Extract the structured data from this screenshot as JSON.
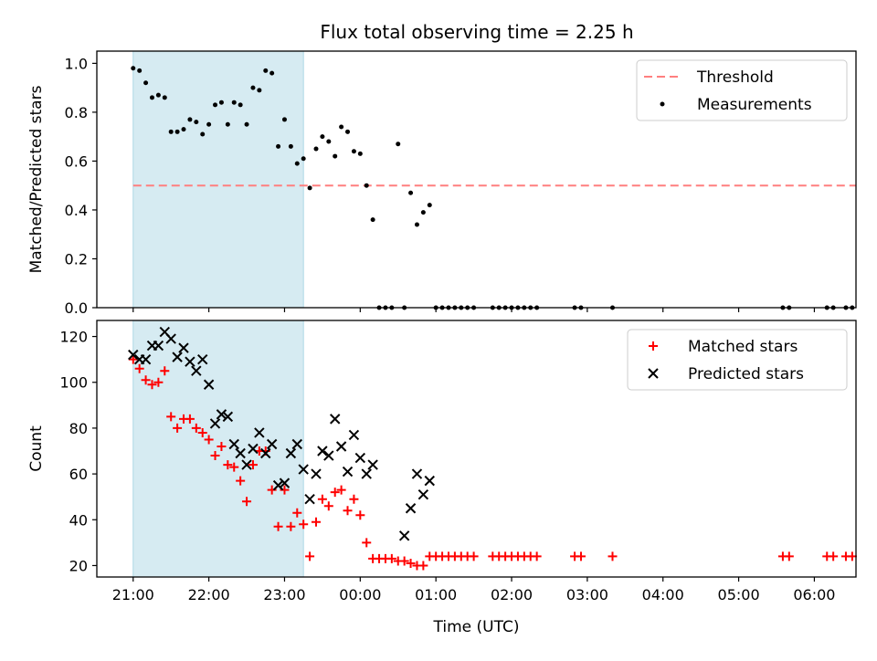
{
  "title": "Flux total observing time = 2.25 h",
  "shaded_color": "#add8e6",
  "chart_data": [
    {
      "type": "scatter",
      "ylabel": "Matched/Predicted stars",
      "ylim": [
        0,
        1.05
      ],
      "xlim_hours": [
        -0.48,
        9.55
      ],
      "yticks": [
        "0.0",
        "0.2",
        "0.4",
        "0.6",
        "0.8",
        "1.0"
      ],
      "ytick_values": [
        0,
        0.2,
        0.4,
        0.6,
        0.8,
        1.0
      ],
      "shaded_span": [
        "21:00",
        "23:15"
      ],
      "legend": {
        "placement": "top-right",
        "items": [
          "Threshold",
          "Measurements"
        ]
      },
      "threshold": {
        "name": "Threshold",
        "value": 0.5,
        "x_range": [
          "21:00",
          "06:33"
        ],
        "color": "#ff7f7f"
      },
      "series": [
        {
          "name": "Measurements",
          "color": "#000000",
          "points": [
            [
              "21:00",
              0.98
            ],
            [
              "21:05",
              0.97
            ],
            [
              "21:10",
              0.92
            ],
            [
              "21:15",
              0.86
            ],
            [
              "21:20",
              0.87
            ],
            [
              "21:25",
              0.86
            ],
            [
              "21:30",
              0.72
            ],
            [
              "21:35",
              0.72
            ],
            [
              "21:40",
              0.73
            ],
            [
              "21:45",
              0.77
            ],
            [
              "21:50",
              0.76
            ],
            [
              "21:55",
              0.71
            ],
            [
              "22:00",
              0.75
            ],
            [
              "22:05",
              0.83
            ],
            [
              "22:10",
              0.84
            ],
            [
              "22:15",
              0.75
            ],
            [
              "22:20",
              0.84
            ],
            [
              "22:25",
              0.83
            ],
            [
              "22:30",
              0.75
            ],
            [
              "22:35",
              0.9
            ],
            [
              "22:40",
              0.89
            ],
            [
              "22:45",
              0.97
            ],
            [
              "22:50",
              0.96
            ],
            [
              "22:55",
              0.66
            ],
            [
              "23:00",
              0.77
            ],
            [
              "23:05",
              0.66
            ],
            [
              "23:10",
              0.59
            ],
            [
              "23:15",
              0.61
            ],
            [
              "23:20",
              0.49
            ],
            [
              "23:25",
              0.65
            ],
            [
              "23:30",
              0.7
            ],
            [
              "23:35",
              0.68
            ],
            [
              "23:40",
              0.62
            ],
            [
              "23:45",
              0.74
            ],
            [
              "23:50",
              0.72
            ],
            [
              "23:55",
              0.64
            ],
            [
              "00:00",
              0.63
            ],
            [
              "00:05",
              0.5
            ],
            [
              "00:10",
              0.36
            ],
            [
              "00:15",
              0.0
            ],
            [
              "00:20",
              0.0
            ],
            [
              "00:25",
              0.0
            ],
            [
              "00:30",
              0.67
            ],
            [
              "00:35",
              0.0
            ],
            [
              "00:40",
              0.47
            ],
            [
              "00:45",
              0.34
            ],
            [
              "00:50",
              0.39
            ],
            [
              "00:55",
              0.42
            ],
            [
              "01:00",
              0.0
            ],
            [
              "01:05",
              0.0
            ],
            [
              "01:10",
              0.0
            ],
            [
              "01:15",
              0.0
            ],
            [
              "01:20",
              0.0
            ],
            [
              "01:25",
              0.0
            ],
            [
              "01:30",
              0.0
            ],
            [
              "01:45",
              0.0
            ],
            [
              "01:50",
              0.0
            ],
            [
              "01:55",
              0.0
            ],
            [
              "02:00",
              0.0
            ],
            [
              "02:05",
              0.0
            ],
            [
              "02:10",
              0.0
            ],
            [
              "02:15",
              0.0
            ],
            [
              "02:20",
              0.0
            ],
            [
              "02:50",
              0.0
            ],
            [
              "02:55",
              0.0
            ],
            [
              "03:20",
              0.0
            ],
            [
              "05:35",
              0.0
            ],
            [
              "05:40",
              0.0
            ],
            [
              "06:10",
              0.0
            ],
            [
              "06:15",
              0.0
            ],
            [
              "06:25",
              0.0
            ],
            [
              "06:30",
              0.0
            ]
          ]
        }
      ]
    },
    {
      "type": "scatter",
      "xlabel": "Time (UTC)",
      "ylabel": "Count",
      "ylim": [
        15,
        127
      ],
      "xlim_hours": [
        -0.48,
        9.55
      ],
      "yticks": [
        "20",
        "40",
        "60",
        "80",
        "100",
        "120"
      ],
      "ytick_values": [
        20,
        40,
        60,
        80,
        100,
        120
      ],
      "xticks": [
        "21:00",
        "22:00",
        "23:00",
        "00:00",
        "01:00",
        "02:00",
        "03:00",
        "04:00",
        "05:00",
        "06:00"
      ],
      "shaded_span": [
        "21:00",
        "23:15"
      ],
      "legend": {
        "placement": "top-right",
        "items": [
          "Matched stars",
          "Predicted stars"
        ]
      },
      "series": [
        {
          "name": "Matched stars",
          "marker": "+",
          "color": "#ff0000",
          "points": [
            [
              "21:00",
              110
            ],
            [
              "21:05",
              106
            ],
            [
              "21:10",
              101
            ],
            [
              "21:15",
              99
            ],
            [
              "21:20",
              100
            ],
            [
              "21:25",
              105
            ],
            [
              "21:30",
              85
            ],
            [
              "21:35",
              80
            ],
            [
              "21:40",
              84
            ],
            [
              "21:45",
              84
            ],
            [
              "21:50",
              80
            ],
            [
              "21:55",
              78
            ],
            [
              "22:00",
              75
            ],
            [
              "22:05",
              68
            ],
            [
              "22:10",
              72
            ],
            [
              "22:15",
              64
            ],
            [
              "22:20",
              63
            ],
            [
              "22:25",
              57
            ],
            [
              "22:30",
              48
            ],
            [
              "22:35",
              64
            ],
            [
              "22:40",
              70
            ],
            [
              "22:45",
              70
            ],
            [
              "22:50",
              53
            ],
            [
              "22:55",
              37
            ],
            [
              "23:00",
              53
            ],
            [
              "23:05",
              37
            ],
            [
              "23:10",
              43
            ],
            [
              "23:15",
              38
            ],
            [
              "23:20",
              24
            ],
            [
              "23:25",
              39
            ],
            [
              "23:30",
              49
            ],
            [
              "23:35",
              46
            ],
            [
              "23:40",
              52
            ],
            [
              "23:45",
              53
            ],
            [
              "23:50",
              44
            ],
            [
              "23:55",
              49
            ],
            [
              "00:00",
              42
            ],
            [
              "00:05",
              30
            ],
            [
              "00:10",
              23
            ],
            [
              "00:15",
              23
            ],
            [
              "00:20",
              23
            ],
            [
              "00:25",
              23
            ],
            [
              "00:30",
              22
            ],
            [
              "00:35",
              22
            ],
            [
              "00:40",
              21
            ],
            [
              "00:45",
              20
            ],
            [
              "00:50",
              20
            ],
            [
              "00:55",
              24
            ],
            [
              "01:00",
              24
            ],
            [
              "01:05",
              24
            ],
            [
              "01:10",
              24
            ],
            [
              "01:15",
              24
            ],
            [
              "01:20",
              24
            ],
            [
              "01:25",
              24
            ],
            [
              "01:30",
              24
            ],
            [
              "01:45",
              24
            ],
            [
              "01:50",
              24
            ],
            [
              "01:55",
              24
            ],
            [
              "02:00",
              24
            ],
            [
              "02:05",
              24
            ],
            [
              "02:10",
              24
            ],
            [
              "02:15",
              24
            ],
            [
              "02:20",
              24
            ],
            [
              "02:50",
              24
            ],
            [
              "02:55",
              24
            ],
            [
              "03:20",
              24
            ],
            [
              "05:35",
              24
            ],
            [
              "05:40",
              24
            ],
            [
              "06:10",
              24
            ],
            [
              "06:15",
              24
            ],
            [
              "06:25",
              24
            ],
            [
              "06:30",
              24
            ]
          ]
        },
        {
          "name": "Predicted stars",
          "marker": "x",
          "color": "#000000",
          "points": [
            [
              "21:00",
              112
            ],
            [
              "21:05",
              110
            ],
            [
              "21:10",
              110
            ],
            [
              "21:15",
              116
            ],
            [
              "21:20",
              116
            ],
            [
              "21:25",
              122
            ],
            [
              "21:30",
              119
            ],
            [
              "21:35",
              111
            ],
            [
              "21:40",
              115
            ],
            [
              "21:45",
              109
            ],
            [
              "21:50",
              105
            ],
            [
              "21:55",
              110
            ],
            [
              "22:00",
              99
            ],
            [
              "22:05",
              82
            ],
            [
              "22:10",
              86
            ],
            [
              "22:15",
              85
            ],
            [
              "22:20",
              73
            ],
            [
              "22:25",
              69
            ],
            [
              "22:30",
              64
            ],
            [
              "22:35",
              71
            ],
            [
              "22:40",
              78
            ],
            [
              "22:45",
              69
            ],
            [
              "22:50",
              73
            ],
            [
              "22:55",
              55
            ],
            [
              "23:00",
              56
            ],
            [
              "23:05",
              69
            ],
            [
              "23:10",
              73
            ],
            [
              "23:15",
              62
            ],
            [
              "23:20",
              49
            ],
            [
              "23:25",
              60
            ],
            [
              "23:30",
              70
            ],
            [
              "23:35",
              68
            ],
            [
              "23:40",
              84
            ],
            [
              "23:45",
              72
            ],
            [
              "23:50",
              61
            ],
            [
              "23:55",
              77
            ],
            [
              "00:00",
              67
            ],
            [
              "00:05",
              60
            ],
            [
              "00:10",
              64
            ],
            [
              "00:35",
              33
            ],
            [
              "00:40",
              45
            ],
            [
              "00:45",
              60
            ],
            [
              "00:50",
              51
            ],
            [
              "00:55",
              57
            ]
          ]
        }
      ]
    }
  ]
}
